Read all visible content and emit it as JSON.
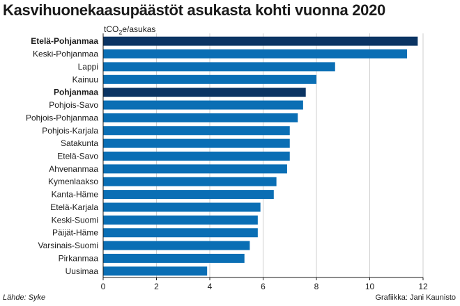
{
  "title": "Kasvihuonekaasupäästöt asukasta kohti vuonna 2020",
  "unit_prefix": "tCO",
  "unit_sub": "2",
  "unit_suffix": "e/asukas",
  "source": "Lähde: Syke",
  "credit": "Grafiikka: Jani Kaunisto",
  "colors": {
    "bar": "#0a6eb4",
    "highlight": "#0b3463",
    "grid": "#cfcfcf",
    "axis": "#1a1a1a"
  },
  "chart_data": {
    "type": "bar",
    "orientation": "horizontal",
    "categories": [
      "Etelä-Pohjanmaa",
      "Keski-Pohjanmaa",
      "Lappi",
      "Kainuu",
      "Pohjanmaa",
      "Pohjois-Savo",
      "Pohjois-Pohjanmaa",
      "Pohjois-Karjala",
      "Satakunta",
      "Etelä-Savo",
      "Ahvenanmaa",
      "Kymenlaakso",
      "Kanta-Häme",
      "Etelä-Karjala",
      "Keski-Suomi",
      "Päijät-Häme",
      "Varsinais-Suomi",
      "Pirkanmaa",
      "Uusimaa"
    ],
    "values": [
      11.8,
      11.4,
      8.7,
      8.0,
      7.6,
      7.5,
      7.3,
      7.0,
      7.0,
      7.0,
      6.9,
      6.5,
      6.4,
      5.9,
      5.8,
      5.8,
      5.5,
      5.3,
      3.9
    ],
    "highlighted": [
      "Etelä-Pohjanmaa",
      "Pohjanmaa"
    ],
    "xlim": [
      0,
      12
    ],
    "xticks": [
      0,
      2,
      4,
      6,
      8,
      10,
      12
    ],
    "grid": true
  }
}
